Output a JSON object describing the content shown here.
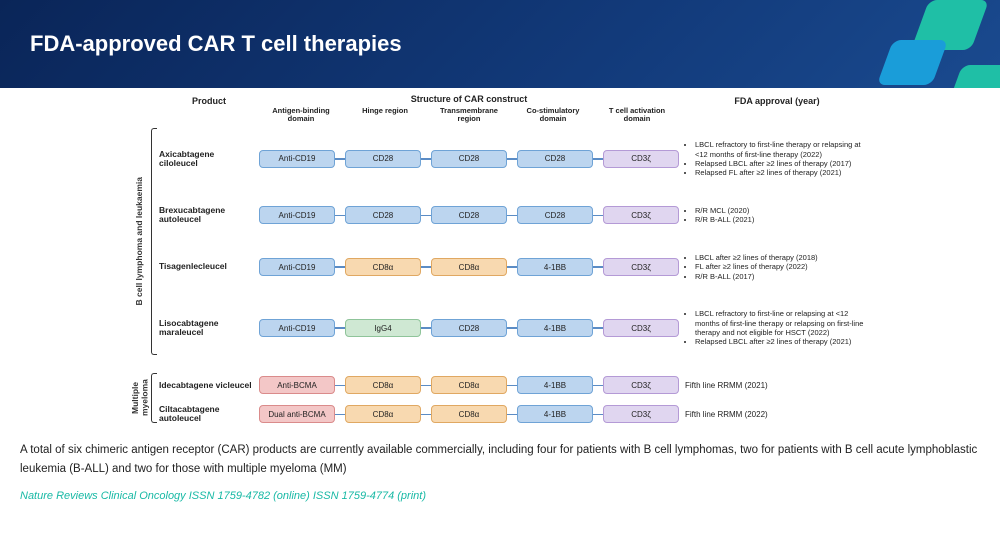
{
  "header": {
    "title": "FDA-approved CAR T cell therapies",
    "deco_colors": [
      "#1fbfa6",
      "#1a9dd9",
      "#1fbfa6"
    ]
  },
  "diagram": {
    "column_headers": {
      "product": "Product",
      "structure": "Structure of CAR construct",
      "fda": "FDA approval (year)"
    },
    "sub_headers": [
      "Antigen-binding domain",
      "Hinge region",
      "Transmembrane region",
      "Co-stimulatory domain",
      "T cell activation domain"
    ],
    "palette": {
      "blue": {
        "bg": "#bcd5ef",
        "border": "#6fa3d6"
      },
      "orange": {
        "bg": "#f8d9b0",
        "border": "#e0a862"
      },
      "purple": {
        "bg": "#e0d6f0",
        "border": "#b49ad6"
      },
      "pink": {
        "bg": "#f3c7c7",
        "border": "#da8b8b"
      },
      "green": {
        "bg": "#cfe8d3",
        "border": "#8fc49a"
      }
    },
    "groups": [
      {
        "vlabel": "B cell lymphoma and leukaemia",
        "rows": [
          {
            "product": "Axicabtagene ciloleucel",
            "domains": [
              {
                "t": "Anti-CD19",
                "c": "blue"
              },
              {
                "t": "CD28",
                "c": "blue"
              },
              {
                "t": "CD28",
                "c": "blue"
              },
              {
                "t": "CD28",
                "c": "blue"
              },
              {
                "t": "CD3ζ",
                "c": "purple"
              }
            ],
            "fda": [
              "LBCL refractory to first-line therapy or relapsing at <12 months of first-line therapy (2022)",
              "Relapsed LBCL after ≥2 lines of therapy (2017)",
              "Relapsed FL after ≥2 lines of therapy (2021)"
            ]
          },
          {
            "product": "Brexucabtagene autoleucel",
            "domains": [
              {
                "t": "Anti-CD19",
                "c": "blue"
              },
              {
                "t": "CD28",
                "c": "blue"
              },
              {
                "t": "CD28",
                "c": "blue"
              },
              {
                "t": "CD28",
                "c": "blue"
              },
              {
                "t": "CD3ζ",
                "c": "purple"
              }
            ],
            "fda": [
              "R/R MCL (2020)",
              "R/R B-ALL (2021)"
            ]
          },
          {
            "product": "Tisagenlecleucel",
            "domains": [
              {
                "t": "Anti-CD19",
                "c": "blue"
              },
              {
                "t": "CD8α",
                "c": "orange"
              },
              {
                "t": "CD8α",
                "c": "orange"
              },
              {
                "t": "4-1BB",
                "c": "blue"
              },
              {
                "t": "CD3ζ",
                "c": "purple"
              }
            ],
            "fda": [
              "LBCL after ≥2 lines of therapy (2018)",
              "FL after ≥2 lines of therapy (2022)",
              "R/R B-ALL (2017)"
            ]
          },
          {
            "product": "Lisocabtagene maraleucel",
            "domains": [
              {
                "t": "Anti-CD19",
                "c": "blue"
              },
              {
                "t": "IgG4",
                "c": "green"
              },
              {
                "t": "CD28",
                "c": "blue"
              },
              {
                "t": "4-1BB",
                "c": "blue"
              },
              {
                "t": "CD3ζ",
                "c": "purple"
              }
            ],
            "fda": [
              "LBCL refractory to first-line or relapsing at <12 months of first-line therapy or relapsing on first-line therapy and not eligible for HSCT (2022)",
              "Relapsed LBCL after ≥2 lines of therapy (2021)"
            ]
          }
        ]
      },
      {
        "vlabel": "Multiple myeloma",
        "rows": [
          {
            "product": "Idecabtagene vicleucel",
            "domains": [
              {
                "t": "Anti-BCMA",
                "c": "pink"
              },
              {
                "t": "CD8α",
                "c": "orange"
              },
              {
                "t": "CD8α",
                "c": "orange"
              },
              {
                "t": "4-1BB",
                "c": "blue"
              },
              {
                "t": "CD3ζ",
                "c": "purple"
              }
            ],
            "fda_plain": "Fifth line RRMM (2021)"
          },
          {
            "product": "Ciltacabtagene autoleucel",
            "domains": [
              {
                "t": "Dual anti-BCMA",
                "c": "pink"
              },
              {
                "t": "CD8α",
                "c": "orange"
              },
              {
                "t": "CD8α",
                "c": "orange"
              },
              {
                "t": "4-1BB",
                "c": "blue"
              },
              {
                "t": "CD3ζ",
                "c": "purple"
              }
            ],
            "fda_plain": "Fifth line RRMM (2022)"
          }
        ]
      }
    ]
  },
  "caption": "A total of six chimeric antigen receptor (CAR) products are currently available commercially, including four for patients with B cell lymphomas, two for patients with B cell acute lymphoblastic leukemia (B-ALL) and two for those with multiple myeloma (MM)",
  "source": "Nature Reviews Clinical Oncology ISSN 1759-4782 (online) ISSN 1759-4774 (print)"
}
